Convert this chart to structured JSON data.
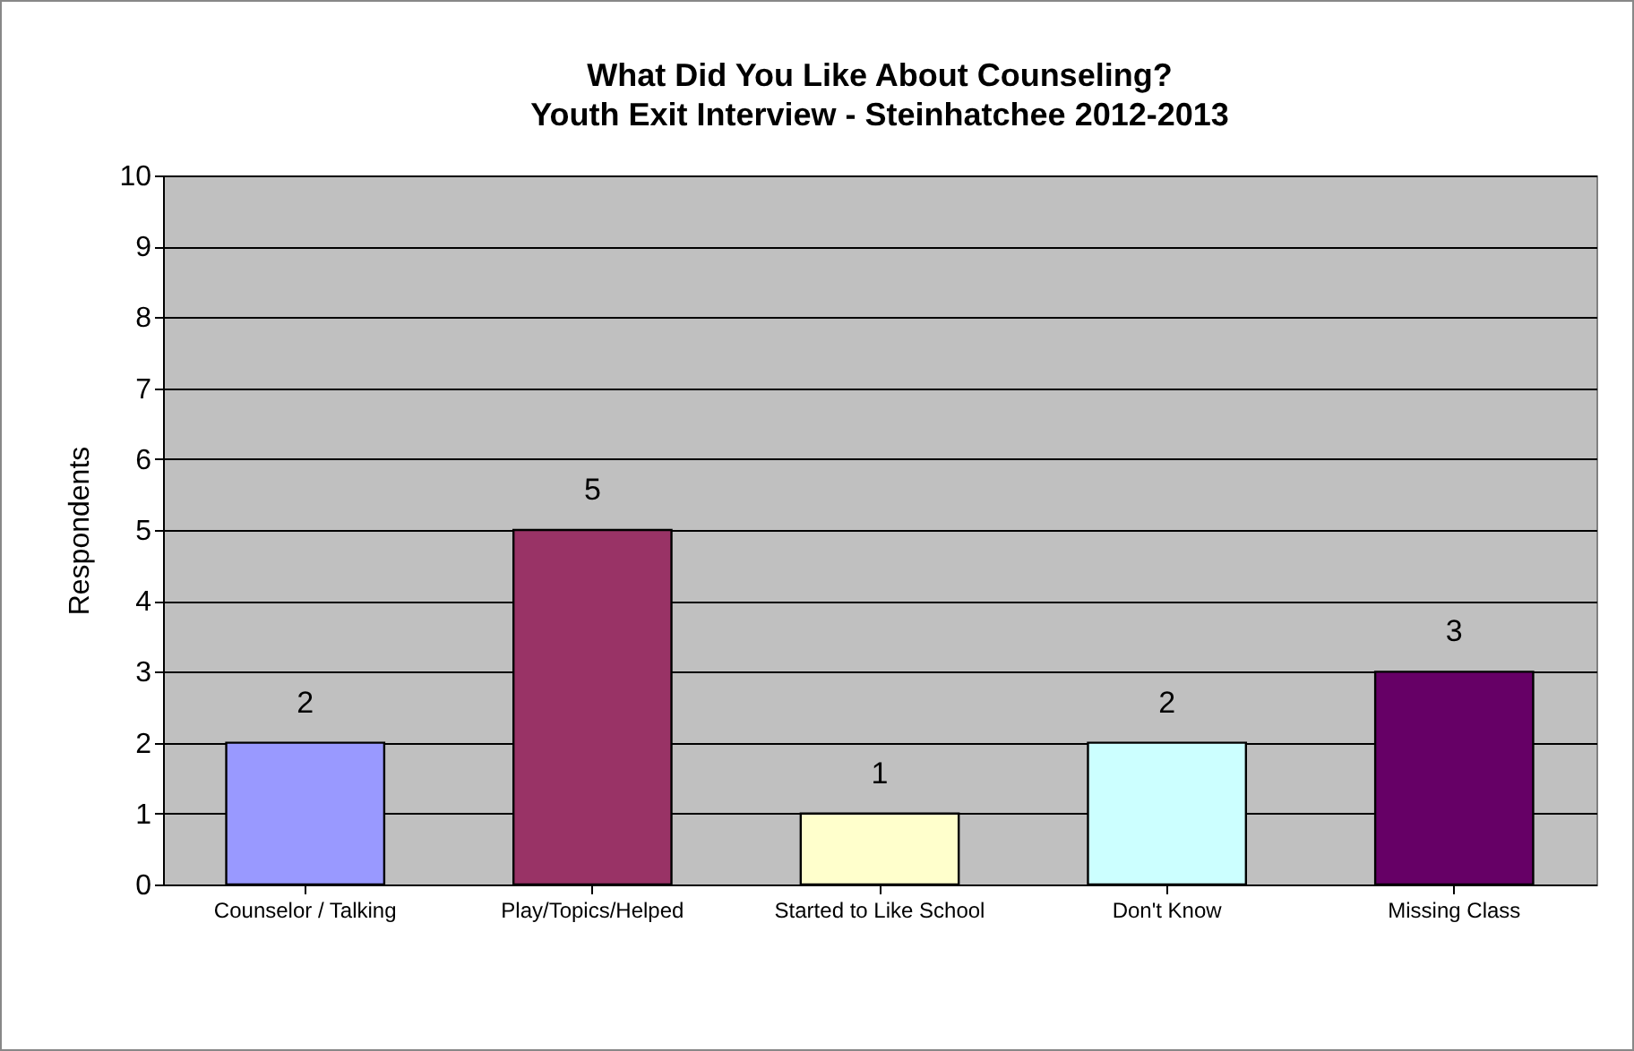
{
  "chart_data": {
    "type": "bar",
    "title": "What Did You Like About Counseling?",
    "subtitle": "Youth Exit Interview - Steinhatchee 2012-2013",
    "ylabel": "Respondents",
    "categories": [
      "Counselor / Talking",
      "Play/Topics/Helped",
      "Started to Like School",
      "Don't Know",
      "Missing Class"
    ],
    "values": [
      2,
      5,
      1,
      2,
      3
    ],
    "colors": [
      "#9999ff",
      "#993366",
      "#ffffcc",
      "#ccffff",
      "#660066"
    ],
    "ylim": [
      0,
      10
    ],
    "yticks": [
      0,
      1,
      2,
      3,
      4,
      5,
      6,
      7,
      8,
      9,
      10
    ],
    "grid": "y",
    "data_labels": true,
    "legend": false
  }
}
